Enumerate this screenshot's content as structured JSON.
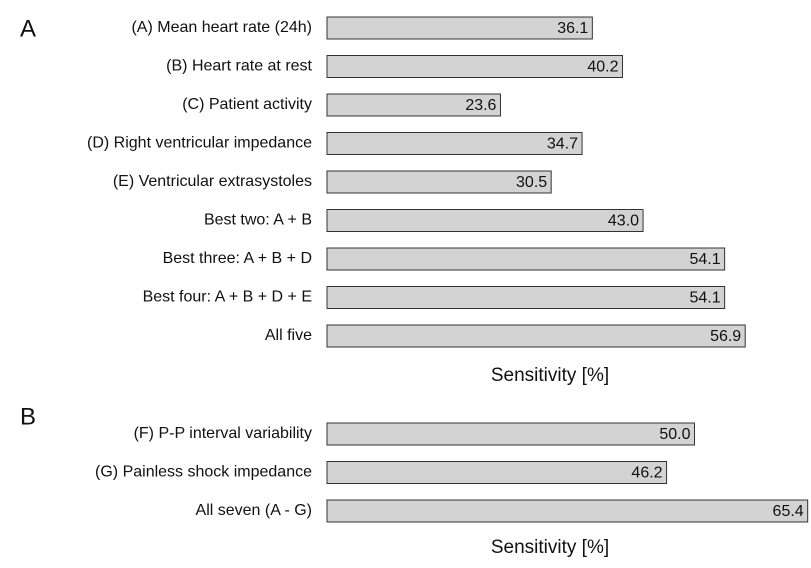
{
  "chart_data": [
    {
      "type": "bar",
      "panel": "A",
      "x_label": "Sensitivity [%]",
      "color": "#d3d3d3",
      "categories": [
        "(A) Mean heart rate (24h)",
        "(B) Heart rate at rest",
        "(C) Patient activity",
        "(D) Right ventricular impedance",
        "(E) Ventricular extrasystoles",
        "Best two: A + B",
        "Best three: A + B + D",
        "Best four: A + B + D + E",
        "All five"
      ],
      "values": [
        36.1,
        40.2,
        23.6,
        34.7,
        30.5,
        43.0,
        54.1,
        54.1,
        56.9
      ],
      "value_labels": [
        "36.1",
        "40.2",
        "23.6",
        "34.7",
        "30.5",
        "43.0",
        "54.1",
        "54.1",
        "56.9"
      ]
    },
    {
      "type": "bar",
      "panel": "B",
      "x_label": "Sensitivity [%]",
      "color": "#d3d3d3",
      "categories": [
        "(F) P-P interval variability",
        "(G) Painless shock impedance",
        "All seven (A - G)"
      ],
      "values": [
        50.0,
        46.2,
        65.4
      ],
      "value_labels": [
        "50.0",
        "46.2",
        "65.4"
      ]
    }
  ]
}
